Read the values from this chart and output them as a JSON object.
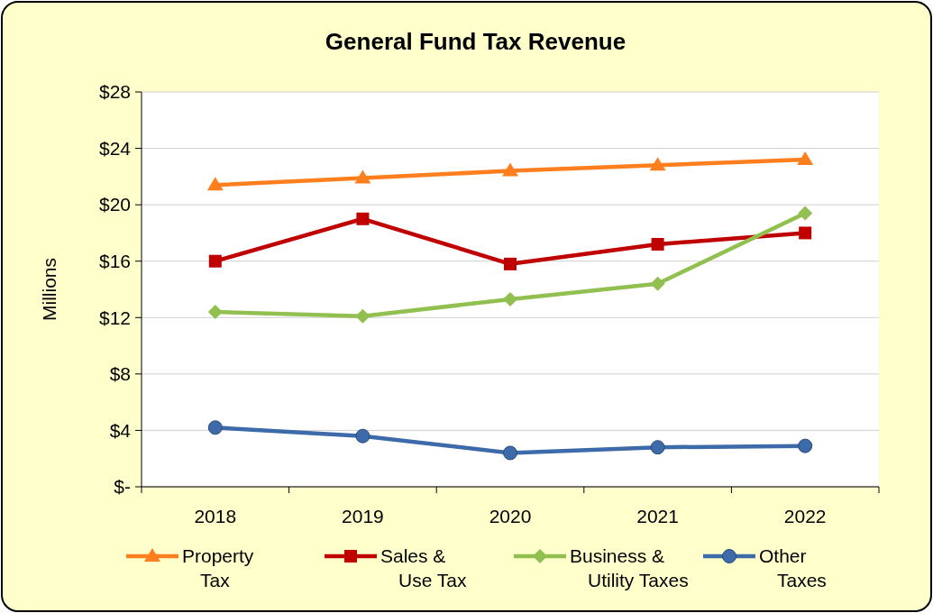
{
  "chart_data": {
    "type": "line",
    "title": "General Fund Tax Revenue",
    "ylabel": "Millions",
    "categories": [
      "2018",
      "2019",
      "2020",
      "2021",
      "2022"
    ],
    "series": [
      {
        "name": "Property Tax",
        "color": "#ff7f1e",
        "marker": "triangle",
        "values": [
          21.4,
          21.9,
          22.4,
          22.8,
          23.2
        ]
      },
      {
        "name": "Sales & Use Tax",
        "color": "#c00000",
        "marker": "square",
        "values": [
          16.0,
          19.0,
          15.8,
          17.2,
          18.0
        ]
      },
      {
        "name": "Business & Utility Taxes",
        "color": "#92c050",
        "marker": "diamond",
        "values": [
          12.4,
          12.1,
          13.3,
          14.4,
          19.4
        ]
      },
      {
        "name": "Other Taxes",
        "color": "#3d6aa8",
        "marker": "circle",
        "values": [
          4.2,
          3.6,
          2.4,
          2.8,
          2.9
        ]
      }
    ],
    "ylim": [
      0,
      28
    ],
    "yticks": [
      {
        "value": 0,
        "label": "$-"
      },
      {
        "value": 4,
        "label": "$4"
      },
      {
        "value": 8,
        "label": "$8"
      },
      {
        "value": 12,
        "label": "$12"
      },
      {
        "value": 16,
        "label": "$16"
      },
      {
        "value": 20,
        "label": "$20"
      },
      {
        "value": 24,
        "label": "$24"
      },
      {
        "value": 28,
        "label": "$28"
      }
    ],
    "grid": "y",
    "legend": "bottom",
    "line_style": "solid"
  }
}
